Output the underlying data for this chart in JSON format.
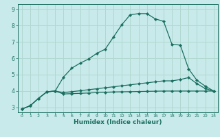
{
  "xlabel": "Humidex (Indice chaleur)",
  "bg_color": "#c8eaea",
  "grid_color": "#b0d8d0",
  "line_color": "#1a6e60",
  "xlim": [
    -0.5,
    23.5
  ],
  "ylim": [
    2.7,
    9.3
  ],
  "xticks": [
    0,
    1,
    2,
    3,
    4,
    5,
    6,
    7,
    8,
    9,
    10,
    11,
    12,
    13,
    14,
    15,
    16,
    17,
    18,
    19,
    20,
    21,
    22,
    23
  ],
  "yticks": [
    3,
    4,
    5,
    6,
    7,
    8,
    9
  ],
  "line1_x": [
    0,
    1,
    2,
    3,
    4,
    5,
    6,
    7,
    8,
    9,
    10,
    11,
    12,
    13,
    14,
    15,
    16,
    17,
    18,
    19,
    20,
    21,
    22,
    23
  ],
  "line1_y": [
    2.9,
    3.1,
    3.55,
    3.95,
    4.0,
    4.85,
    5.4,
    5.7,
    5.95,
    6.3,
    6.55,
    7.3,
    8.05,
    8.65,
    8.72,
    8.72,
    8.4,
    8.25,
    6.85,
    6.8,
    5.35,
    4.65,
    4.3,
    4.0
  ],
  "line2_x": [
    0,
    1,
    2,
    3,
    4,
    5,
    6,
    7,
    8,
    9,
    10,
    11,
    12,
    13,
    14,
    15,
    16,
    17,
    18,
    19,
    20,
    21,
    22,
    23
  ],
  "line2_y": [
    2.9,
    3.1,
    3.55,
    3.95,
    4.0,
    3.9,
    3.96,
    4.02,
    4.08,
    4.14,
    4.2,
    4.26,
    4.32,
    4.38,
    4.44,
    4.5,
    4.56,
    4.62,
    4.62,
    4.7,
    4.82,
    4.45,
    4.15,
    4.0
  ],
  "line3_x": [
    0,
    1,
    2,
    3,
    4,
    5,
    6,
    7,
    8,
    9,
    10,
    11,
    12,
    13,
    14,
    15,
    16,
    17,
    18,
    19,
    20,
    21,
    22,
    23
  ],
  "line3_y": [
    2.9,
    3.1,
    3.55,
    3.95,
    4.0,
    3.82,
    3.84,
    3.86,
    3.88,
    3.9,
    3.92,
    3.94,
    3.95,
    3.96,
    3.97,
    3.98,
    3.99,
    4.0,
    4.0,
    4.0,
    4.0,
    4.0,
    4.0,
    4.0
  ]
}
